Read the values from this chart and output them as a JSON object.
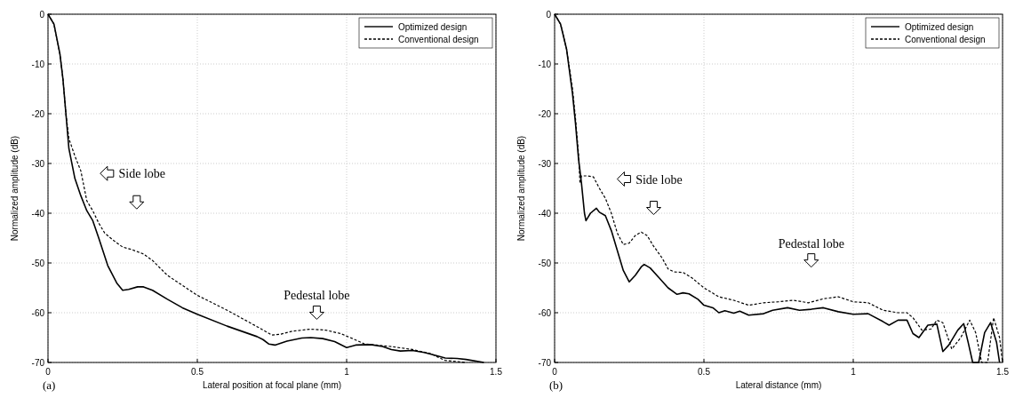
{
  "chart_data": [
    {
      "type": "line",
      "xlabel": "Lateral position at focal plane (mm)",
      "ylabel": "Normalized amplitude (dB)",
      "xlim": [
        0,
        1.5
      ],
      "xticks": [
        0,
        0.5,
        1,
        1.5
      ],
      "ylim": [
        -70,
        0
      ],
      "yticks": [
        -70,
        -60,
        -50,
        -40,
        -30,
        -20,
        -10,
        0
      ],
      "grid": true,
      "legend": "top right",
      "annotations": [
        "Side lobe",
        "Pedestal lobe",
        "(a)"
      ],
      "series": [
        {
          "name": "Optimized design",
          "color": "#000000",
          "line_style": "solid",
          "x": [
            0,
            0.02,
            0.04,
            0.05,
            0.06,
            0.07,
            0.09,
            0.11,
            0.13,
            0.15,
            0.17,
            0.2,
            0.23,
            0.25,
            0.27,
            0.3,
            0.32,
            0.35,
            0.4,
            0.45,
            0.5,
            0.6,
            0.7,
            0.72,
            0.74,
            0.76,
            0.8,
            0.85,
            0.88,
            0.92,
            0.96,
            1,
            1.03,
            1.08,
            1.12,
            1.15,
            1.18,
            1.22,
            1.26,
            1.3,
            1.33,
            1.37,
            1.4,
            1.46
          ],
          "values": [
            0,
            -2,
            -8,
            -13,
            -20,
            -27,
            -33,
            -36.5,
            -39.5,
            -41.5,
            -45,
            -50.5,
            -54,
            -55.5,
            -55.3,
            -54.8,
            -54.8,
            -55.5,
            -57.3,
            -59,
            -60.3,
            -62.7,
            -64.8,
            -65.4,
            -66.3,
            -66.5,
            -65.7,
            -65.1,
            -65,
            -65.2,
            -65.8,
            -67,
            -66.5,
            -66.4,
            -66.8,
            -67.4,
            -67.7,
            -67.6,
            -68,
            -68.6,
            -69.1,
            -69.2,
            -69.4,
            -70
          ]
        },
        {
          "name": "Conventional design",
          "color": "#000000",
          "line_style": "dashed",
          "x": [
            0,
            0.02,
            0.04,
            0.05,
            0.06,
            0.07,
            0.09,
            0.11,
            0.13,
            0.15,
            0.17,
            0.19,
            0.22,
            0.25,
            0.28,
            0.32,
            0.35,
            0.4,
            0.5,
            0.6,
            0.7,
            0.75,
            0.78,
            0.82,
            0.88,
            0.93,
            0.98,
            1.02,
            1.06,
            1.1,
            1.15,
            1.22,
            1.28,
            1.33,
            1.4
          ],
          "values": [
            0,
            -2,
            -8,
            -13,
            -20,
            -25,
            -28.5,
            -31.5,
            -37.5,
            -39.5,
            -42,
            -44,
            -45.5,
            -46.8,
            -47.3,
            -48.2,
            -49.5,
            -52.5,
            -56.5,
            -59.5,
            -62.8,
            -64.5,
            -64.3,
            -63.7,
            -63.3,
            -63.5,
            -64.2,
            -65.2,
            -66.3,
            -66.5,
            -66.8,
            -67.4,
            -68.2,
            -69.6,
            -70
          ]
        }
      ]
    },
    {
      "type": "line",
      "xlabel": "Lateral distance (mm)",
      "ylabel": "Normalized amplitude (dB)",
      "xlim": [
        0,
        1.5
      ],
      "xticks": [
        0,
        0.5,
        1,
        1.5
      ],
      "ylim": [
        -70,
        0
      ],
      "yticks": [
        -70,
        -60,
        -50,
        -40,
        -30,
        -20,
        -10,
        0
      ],
      "grid": true,
      "legend": "top right",
      "annotations": [
        "Side lobe",
        "Pedestal lobe",
        "(b)"
      ],
      "series": [
        {
          "name": "Optimized design",
          "color": "#000000",
          "line_style": "solid",
          "x": [
            0,
            0.02,
            0.04,
            0.06,
            0.07,
            0.08,
            0.09,
            0.1,
            0.105,
            0.11,
            0.12,
            0.14,
            0.15,
            0.17,
            0.19,
            0.21,
            0.23,
            0.25,
            0.27,
            0.29,
            0.3,
            0.32,
            0.35,
            0.38,
            0.41,
            0.43,
            0.45,
            0.48,
            0.5,
            0.53,
            0.55,
            0.57,
            0.6,
            0.62,
            0.65,
            0.7,
            0.73,
            0.78,
            0.82,
            0.86,
            0.9,
            0.95,
            1,
            1.05,
            1.1,
            1.12,
            1.15,
            1.18,
            1.2,
            1.22,
            1.25,
            1.28,
            1.3,
            1.32,
            1.35,
            1.37,
            1.385,
            1.4,
            1.42,
            1.44,
            1.46,
            1.48,
            1.49
          ],
          "values": [
            0,
            -2,
            -7,
            -16,
            -22,
            -29,
            -34,
            -40,
            -41.5,
            -41,
            -40,
            -39,
            -39.8,
            -40.5,
            -43.5,
            -47.5,
            -51.5,
            -53.8,
            -52.5,
            -50.8,
            -50.3,
            -51,
            -53,
            -55,
            -56.3,
            -56,
            -56.2,
            -57.3,
            -58.5,
            -59,
            -60,
            -59.6,
            -60.1,
            -59.7,
            -60.5,
            -60.2,
            -59.5,
            -59,
            -59.5,
            -59.3,
            -59,
            -59.8,
            -60.3,
            -60.2,
            -61.8,
            -62.5,
            -61.5,
            -61.5,
            -64.2,
            -65,
            -62.5,
            -62.3,
            -67.8,
            -66.5,
            -63.5,
            -62.2,
            -66,
            -70,
            -70,
            -64,
            -62,
            -66,
            -70
          ]
        },
        {
          "name": "Conventional design",
          "color": "#000000",
          "line_style": "dashed",
          "x": [
            0,
            0.02,
            0.04,
            0.06,
            0.07,
            0.08,
            0.085,
            0.09,
            0.11,
            0.13,
            0.15,
            0.17,
            0.19,
            0.21,
            0.23,
            0.25,
            0.27,
            0.29,
            0.31,
            0.33,
            0.36,
            0.38,
            0.4,
            0.43,
            0.46,
            0.5,
            0.55,
            0.6,
            0.65,
            0.7,
            0.75,
            0.8,
            0.85,
            0.9,
            0.95,
            1,
            1.05,
            1.1,
            1.15,
            1.18,
            1.2,
            1.23,
            1.26,
            1.28,
            1.3,
            1.33,
            1.36,
            1.39,
            1.41,
            1.43,
            1.45,
            1.47,
            1.49,
            1.5
          ],
          "values": [
            0,
            -2,
            -7,
            -15,
            -21,
            -28,
            -34,
            -32.5,
            -32.5,
            -32.7,
            -35,
            -37,
            -40,
            -44,
            -46.3,
            -46,
            -44.5,
            -43.8,
            -44.5,
            -46.5,
            -49,
            -51.2,
            -51.8,
            -51.9,
            -53,
            -55,
            -56.8,
            -57.5,
            -58.5,
            -58,
            -57.8,
            -57.5,
            -58,
            -57.2,
            -56.8,
            -57.8,
            -58,
            -59.5,
            -60,
            -60,
            -61,
            -63.5,
            -63.3,
            -61.5,
            -62,
            -67.3,
            -65,
            -61.5,
            -64,
            -70,
            -70,
            -61,
            -65,
            -70
          ]
        }
      ]
    }
  ]
}
